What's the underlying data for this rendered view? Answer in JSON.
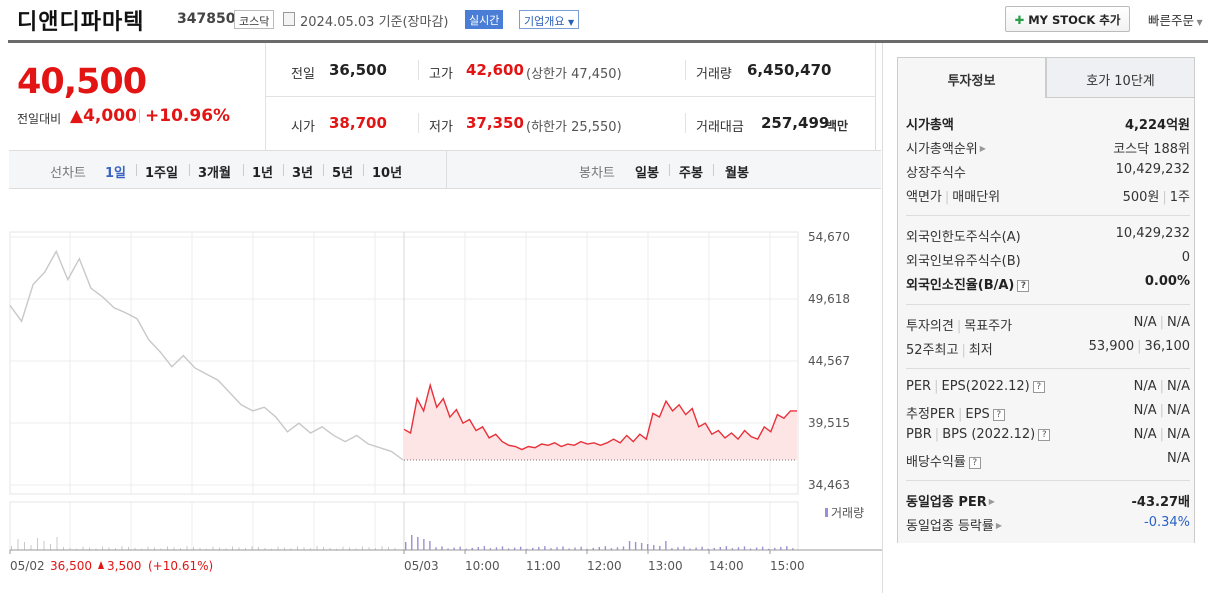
{
  "header": {
    "company": "디앤디파마텍",
    "code": "347850",
    "market": "코스닥",
    "date": "2024.05.03 기준(장마감)",
    "realtime": "실시간",
    "company_info": "기업개요",
    "mystock": "MY STOCK 추가",
    "quick_order": "빠른주문"
  },
  "price": {
    "current": "40,500",
    "change_label": "전일대비",
    "change": "▲4,000",
    "change_pct": "+10.96%",
    "prev_close_label": "전일",
    "prev_close": "36,500",
    "open_label": "시가",
    "open": "38,700",
    "high_label": "고가",
    "high": "42,600",
    "upper_limit": "(상한가 47,450)",
    "low_label": "저가",
    "low": "37,350",
    "lower_limit": "(하한가 25,550)",
    "volume_label": "거래량",
    "volume": "6,450,470",
    "value_label": "거래대금",
    "value": "257,499",
    "value_unit": "백만"
  },
  "tabs": {
    "line_label": "선차트",
    "periods": [
      "1일",
      "1주일",
      "3개월",
      "1년",
      "3년",
      "5년",
      "10년"
    ],
    "selected": "1일",
    "candle_label": "봉차트",
    "candles": [
      "일봉",
      "주봉",
      "월봉"
    ]
  },
  "chart_data": {
    "type": "line",
    "y_ticks": [
      "54,670",
      "49,618",
      "44,567",
      "39,515",
      "34,463"
    ],
    "ylim": [
      34463,
      54670
    ],
    "x_labels": [
      "05/02",
      "05/03",
      "10:00",
      "11:00",
      "12:00",
      "13:00",
      "14:00",
      "15:00"
    ],
    "prev_day_summary": {
      "date": "05/02",
      "close": "36,500",
      "change": "3,500",
      "pct": "(+10.61%)"
    },
    "volume_legend": "거래량",
    "series": [
      {
        "values": [
          49100,
          47800,
          50800,
          51800,
          53500,
          51200,
          52900,
          50500,
          49800,
          48900,
          48500,
          48000,
          46300,
          45300,
          44100,
          45000,
          44000,
          43500,
          43000,
          42000,
          41000,
          40500,
          40800,
          40000,
          38800,
          39500,
          38700,
          39200,
          38500,
          38000,
          38500,
          37800,
          37500,
          37200,
          36500
        ]
      },
      {
        "values": [
          39000,
          38700,
          41500,
          40500,
          42600,
          40800,
          41500,
          40000,
          40600,
          39500,
          39800,
          38900,
          39200,
          38300,
          38600,
          38000,
          37700,
          37600,
          37350,
          37600,
          37500,
          37800,
          37700,
          37900,
          37600,
          37800,
          37700,
          38000,
          37800,
          37900,
          37700,
          37900,
          38200,
          37900,
          38500,
          38000,
          38600,
          38200,
          40300,
          40000,
          41300,
          40500,
          41000,
          40200,
          40700,
          39200,
          39500,
          38600,
          38900,
          38300,
          38700,
          38200,
          38900,
          38400,
          38200,
          39200,
          38800,
          40200,
          39900,
          40500,
          40500
        ]
      }
    ],
    "colors": {
      "prev": "#c8c8c8",
      "today": "#e8313a",
      "fill": "#fde4e5",
      "volume": "#9a8fd6"
    }
  },
  "sidebar": {
    "tab_active": "투자정보",
    "tab_other": "호가 10단계",
    "rows": [
      {
        "k": "시가총액",
        "v": "4,224억원"
      },
      {
        "k": "시가총액순위",
        "v": "코스닥 188위"
      },
      {
        "k": "상장주식수",
        "v": "10,429,232"
      },
      {
        "k": "액면가",
        "k2": "매매단위",
        "v": "500원",
        "v2": "1주"
      },
      {
        "k": "외국인한도주식수(A)",
        "v": "10,429,232"
      },
      {
        "k": "외국인보유주식수(B)",
        "v": "0"
      },
      {
        "k": "외국인소진율(B/A)",
        "v": "0.00%"
      },
      {
        "k": "투자의견",
        "k2": "목표주가",
        "v": "N/A",
        "v2": "N/A"
      },
      {
        "k": "52주최고",
        "k2": "최저",
        "v": "53,900",
        "v2": "36,100"
      },
      {
        "k": "PER",
        "k2": "EPS(2022.12)",
        "v": "N/A",
        "v2": "N/A"
      },
      {
        "k": "추정PER",
        "k2": "EPS",
        "v": "N/A",
        "v2": "N/A"
      },
      {
        "k": "PBR",
        "k2": "BPS (2022.12)",
        "v": "N/A",
        "v2": "N/A"
      },
      {
        "k": "배당수익률",
        "v": "N/A"
      },
      {
        "k": "동일업종 PER",
        "v": "-43.27배"
      },
      {
        "k": "동일업종 등락률",
        "v": "-0.34%"
      }
    ],
    "help_mark": "?"
  }
}
